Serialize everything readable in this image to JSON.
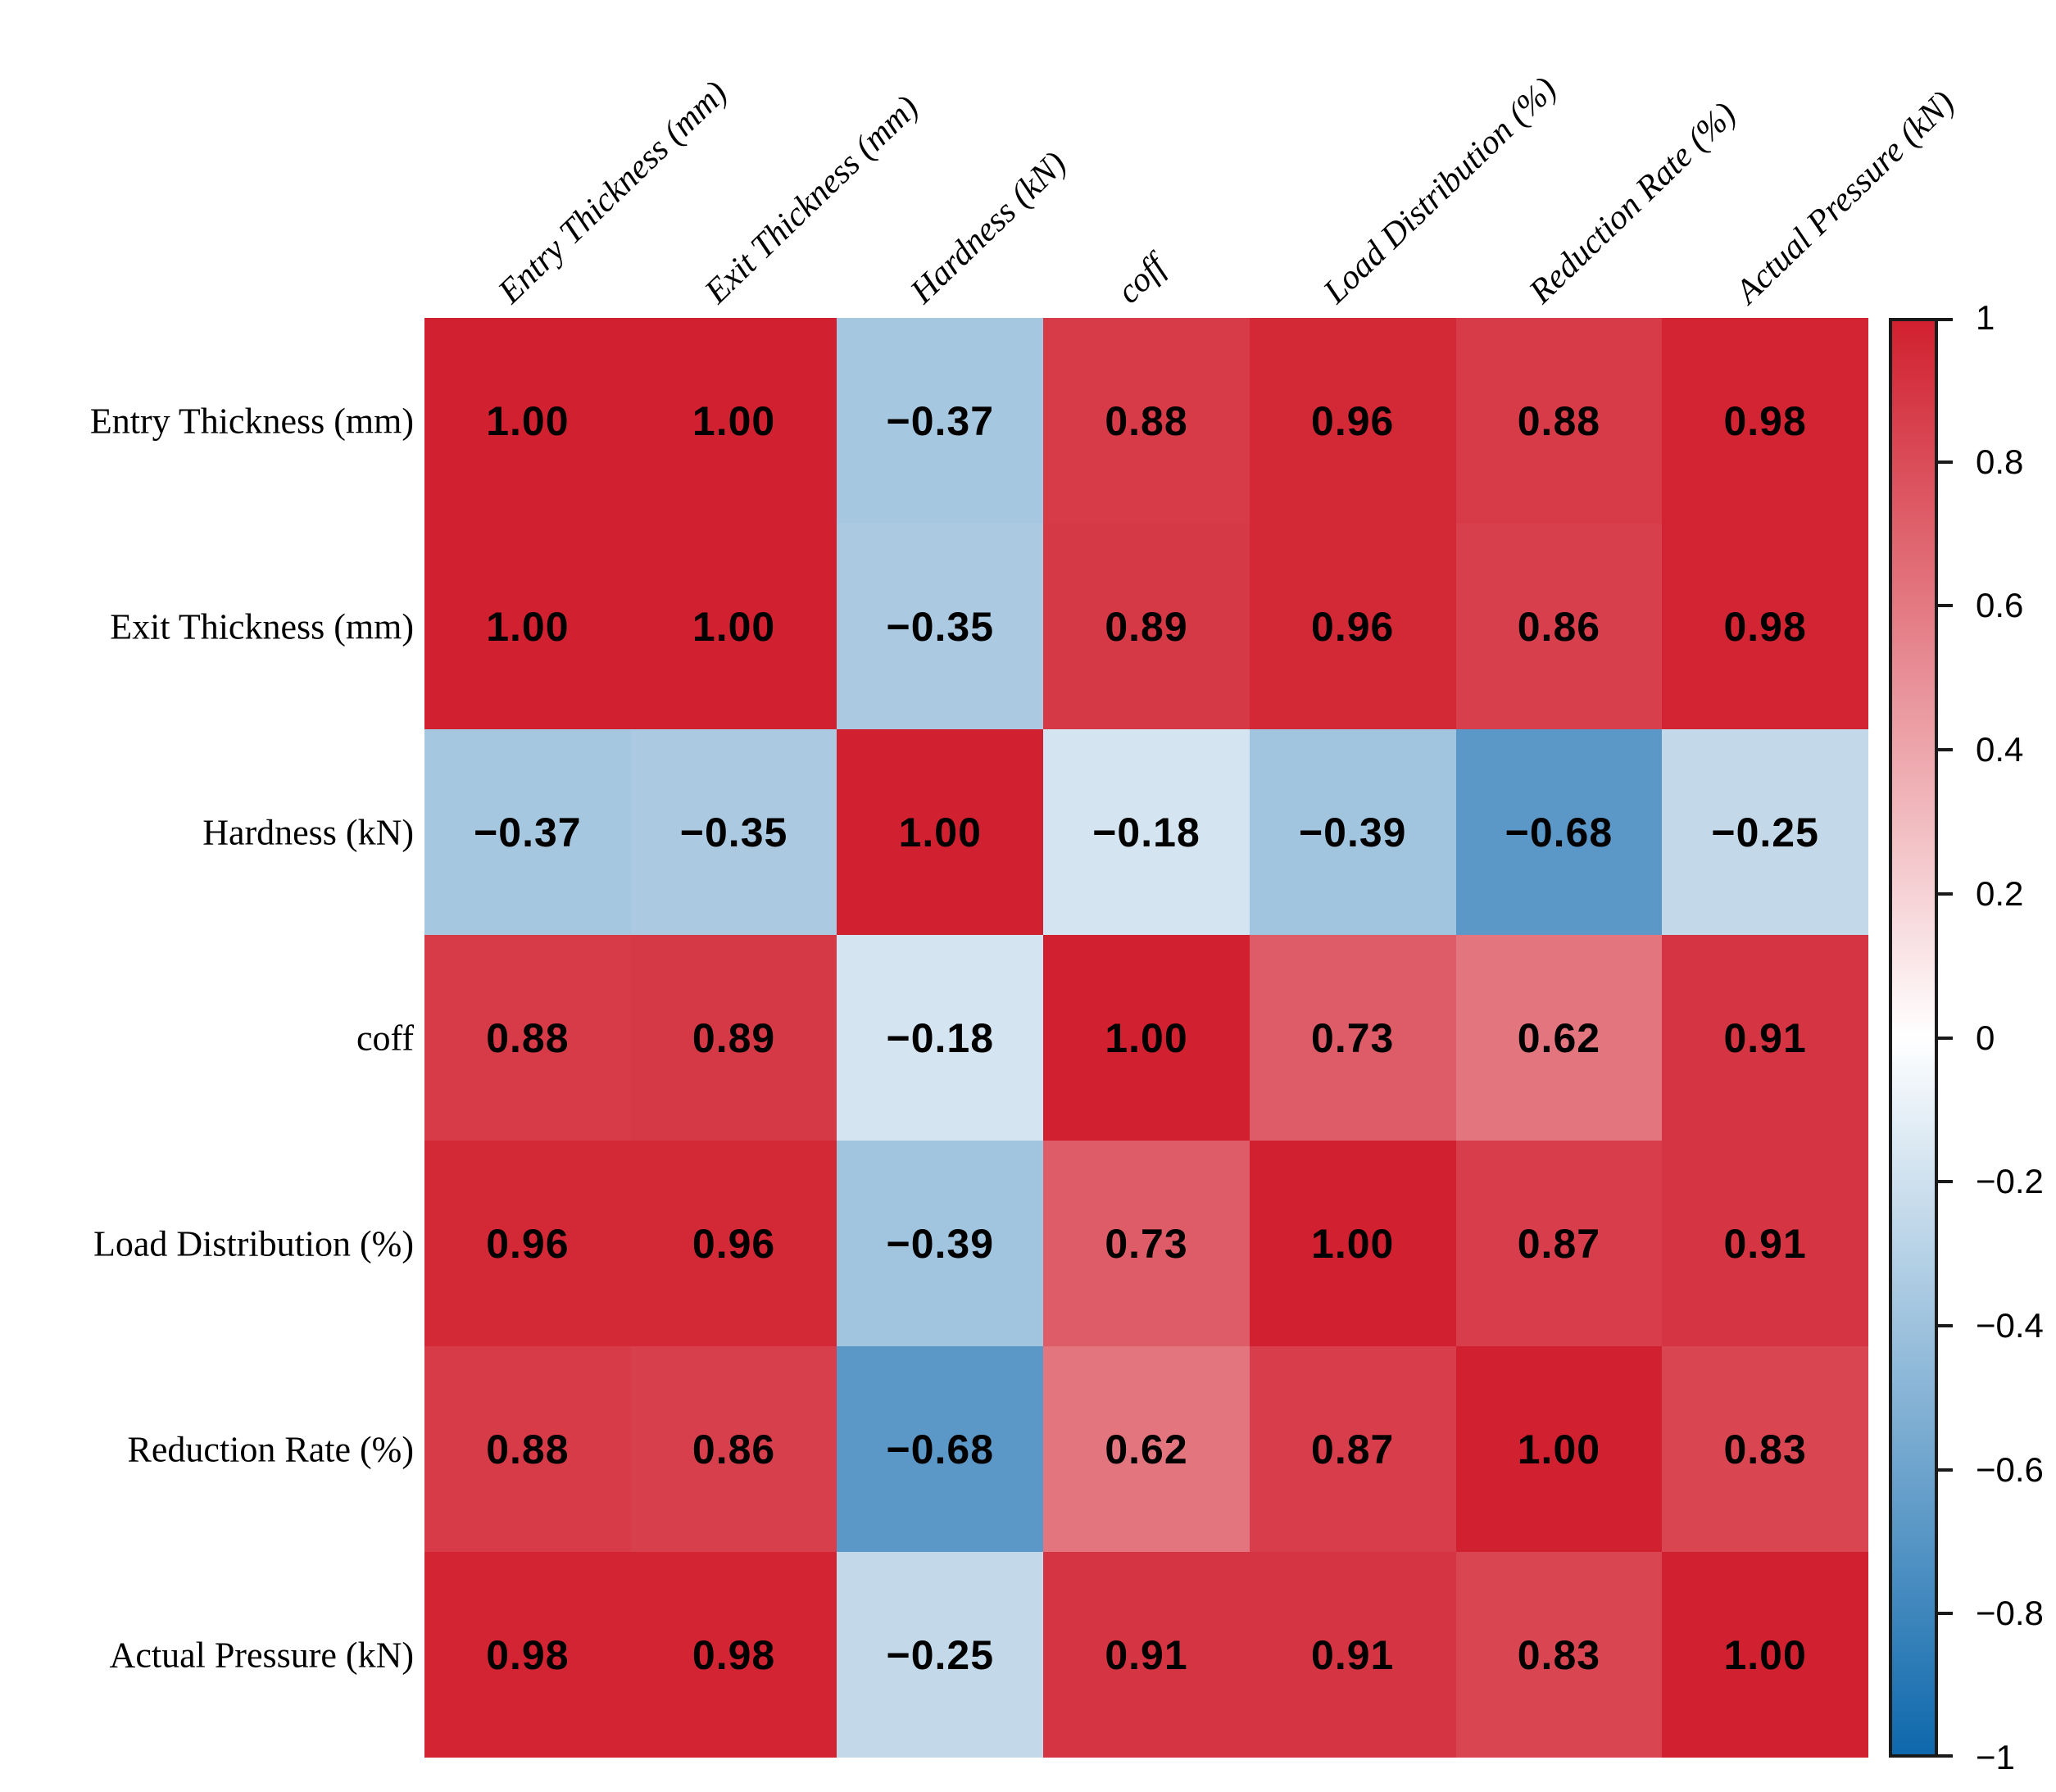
{
  "chart_data": {
    "type": "heatmap",
    "title": "",
    "variables": [
      "Entry Thickness (mm)",
      "Exit Thickness (mm)",
      "Hardness (kN)",
      "coff",
      "Load Distribution (%)",
      "Reduction Rate (%)",
      "Actual Pressure (kN)"
    ],
    "matrix": [
      [
        1.0,
        1.0,
        -0.37,
        0.88,
        0.96,
        0.88,
        0.98
      ],
      [
        1.0,
        1.0,
        -0.35,
        0.89,
        0.96,
        0.86,
        0.98
      ],
      [
        -0.37,
        -0.35,
        1.0,
        -0.18,
        -0.39,
        -0.68,
        -0.25
      ],
      [
        0.88,
        0.89,
        -0.18,
        1.0,
        0.73,
        0.62,
        0.91
      ],
      [
        0.96,
        0.96,
        -0.39,
        0.73,
        1.0,
        0.87,
        0.91
      ],
      [
        0.88,
        0.86,
        -0.68,
        0.62,
        0.87,
        1.0,
        0.83
      ],
      [
        0.98,
        0.98,
        -0.25,
        0.91,
        0.91,
        0.83,
        1.0
      ]
    ],
    "value_decimals": 2,
    "colorbar": {
      "min": -1,
      "max": 1,
      "ticks": [
        1,
        0.8,
        0.6,
        0.4,
        0.2,
        0,
        -0.2,
        -0.4,
        -0.6,
        -0.8,
        -1
      ],
      "tick_labels": [
        "1",
        "0.8",
        "0.6",
        "0.4",
        "0.2",
        "0",
        "−0.2",
        "−0.4",
        "−0.6",
        "−0.8",
        "−1"
      ],
      "position": "right"
    },
    "colors": {
      "max_positive": "#d1202f",
      "mid": "#ffffff",
      "max_negative": "#0e68ac",
      "cell_text": "#000000",
      "label_text": "#000000",
      "colorbar_border": "#1a1a1a"
    },
    "legend_position": "right",
    "grid_lines": false
  }
}
